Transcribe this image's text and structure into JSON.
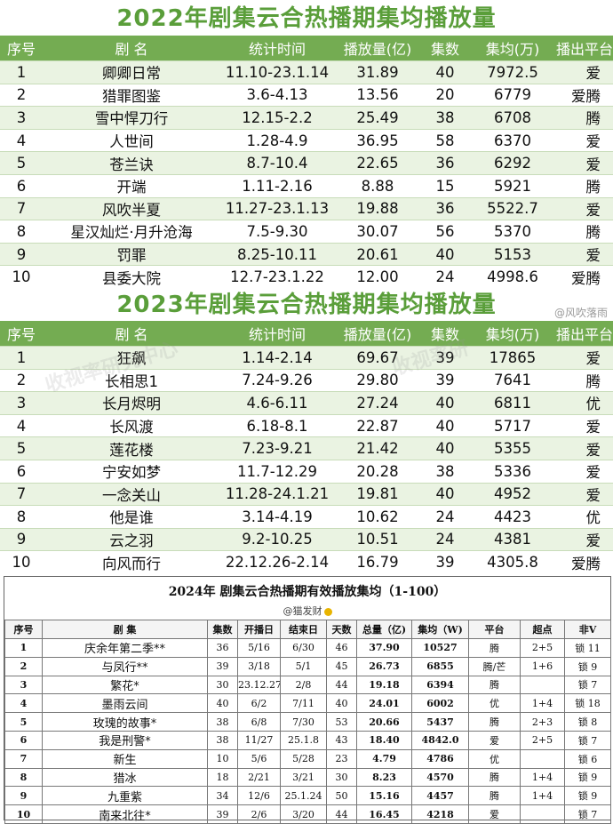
{
  "table2022": {
    "title": "2022年剧集云合热播期集均播放量",
    "headers": [
      "序号",
      "剧  名",
      "统计时间",
      "播放量(亿)",
      "集数",
      "集均(万)",
      "播出平台"
    ],
    "rows": [
      [
        "1",
        "卿卿日常",
        "11.10-23.1.14",
        "31.89",
        "40",
        "7972.5",
        "爱"
      ],
      [
        "2",
        "猎罪图鉴",
        "3.6-4.13",
        "13.56",
        "20",
        "6779",
        "爱腾"
      ],
      [
        "3",
        "雪中悍刀行",
        "12.15-2.2",
        "25.49",
        "38",
        "6708",
        "腾"
      ],
      [
        "4",
        "人世间",
        "1.28-4.9",
        "36.95",
        "58",
        "6370",
        "爱"
      ],
      [
        "5",
        "苍兰诀",
        "8.7-10.4",
        "22.65",
        "36",
        "6292",
        "爱"
      ],
      [
        "6",
        "开端",
        "1.11-2.16",
        "8.88",
        "15",
        "5921",
        "腾"
      ],
      [
        "7",
        "风吹半夏",
        "11.27-23.1.13",
        "19.88",
        "36",
        "5522.7",
        "爱"
      ],
      [
        "8",
        "星汉灿烂·月升沧海",
        "7.5-9.30",
        "30.07",
        "56",
        "5370",
        "腾"
      ],
      [
        "9",
        "罚罪",
        "8.25-10.11",
        "20.61",
        "40",
        "5153",
        "爱"
      ],
      [
        "10",
        "县委大院",
        "12.7-23.1.22",
        "12.00",
        "24",
        "4998.6",
        "爱腾"
      ]
    ]
  },
  "table2023": {
    "title": "2023年剧集云合热播期集均播放量",
    "credit": "@风吹落雨",
    "headers": [
      "序号",
      "剧  名",
      "统计时间",
      "播放量(亿)",
      "集数",
      "集均(万)",
      "播出平台"
    ],
    "rows": [
      [
        "1",
        "狂飙",
        "1.14-2.14",
        "69.67",
        "39",
        "17865",
        "爱"
      ],
      [
        "2",
        "长相思1",
        "7.24-9.26",
        "29.80",
        "39",
        "7641",
        "腾"
      ],
      [
        "3",
        "长月烬明",
        "4.6-6.11",
        "27.24",
        "40",
        "6811",
        "优"
      ],
      [
        "4",
        "长风渡",
        "6.18-8.1",
        "22.87",
        "40",
        "5717",
        "爱"
      ],
      [
        "5",
        "莲花楼",
        "7.23-9.21",
        "21.42",
        "40",
        "5355",
        "爱"
      ],
      [
        "6",
        "宁安如梦",
        "11.7-12.29",
        "20.28",
        "38",
        "5336",
        "爱"
      ],
      [
        "7",
        "一念关山",
        "11.28-24.1.21",
        "19.81",
        "40",
        "4952",
        "爱"
      ],
      [
        "8",
        "他是谁",
        "3.14-4.19",
        "10.62",
        "24",
        "4423",
        "优"
      ],
      [
        "9",
        "云之羽",
        "9.2-10.25",
        "10.51",
        "24",
        "4381",
        "爱"
      ],
      [
        "10",
        "向风而行",
        "22.12.26-2.14",
        "16.79",
        "39",
        "4305.8",
        "爱腾"
      ]
    ]
  },
  "watermark": {
    "text1": "收视率研究中心",
    "text2": "收视率研"
  },
  "table2024": {
    "title": "2024年  剧集云合热播期有效播放集均（1-100）",
    "credit": "@猫发财",
    "headers": [
      "序号",
      "剧 集",
      "集数",
      "开播日",
      "结束日",
      "天数",
      "总量（亿)",
      "集均（W)",
      "平台",
      "超点",
      "非V"
    ],
    "rows": [
      [
        "1",
        "庆余年第二季**",
        "36",
        "5/16",
        "6/30",
        "46",
        "37.90",
        "10527",
        "腾",
        "2+5",
        "锁 11"
      ],
      [
        "2",
        "与凤行**",
        "39",
        "3/18",
        "5/1",
        "45",
        "26.73",
        "6855",
        "腾/芒",
        "1+6",
        "锁 9"
      ],
      [
        "3",
        "繁花*",
        "30",
        "23.12.27",
        "2/8",
        "44",
        "19.18",
        "6394",
        "腾",
        "",
        "锁 7"
      ],
      [
        "4",
        "墨雨云间",
        "40",
        "6/2",
        "7/11",
        "40",
        "24.01",
        "6002",
        "优",
        "1+4",
        "锁 18"
      ],
      [
        "5",
        "玫瑰的故事*",
        "38",
        "6/8",
        "7/30",
        "53",
        "20.66",
        "5437",
        "腾",
        "2+3",
        "锁 8"
      ],
      [
        "6",
        "我是刑警*",
        "38",
        "11/27",
        "25.1.8",
        "43",
        "18.40",
        "4842.0",
        "爱",
        "2+5",
        "锁 7"
      ],
      [
        "7",
        "新生",
        "10",
        "5/6",
        "5/28",
        "23",
        "4.79",
        "4786",
        "优",
        "",
        "锁 6"
      ],
      [
        "8",
        "猎冰",
        "18",
        "2/21",
        "3/21",
        "30",
        "8.23",
        "4570",
        "腾",
        "1+4",
        "锁 9"
      ],
      [
        "9",
        "九重紫",
        "34",
        "12/6",
        "25.1.24",
        "50",
        "15.16",
        "4457",
        "腾",
        "1+4",
        "锁 9"
      ],
      [
        "10",
        "南来北往*",
        "39",
        "2/6",
        "3/20",
        "44",
        "16.45",
        "4218",
        "爱",
        "",
        "锁 7"
      ]
    ]
  }
}
